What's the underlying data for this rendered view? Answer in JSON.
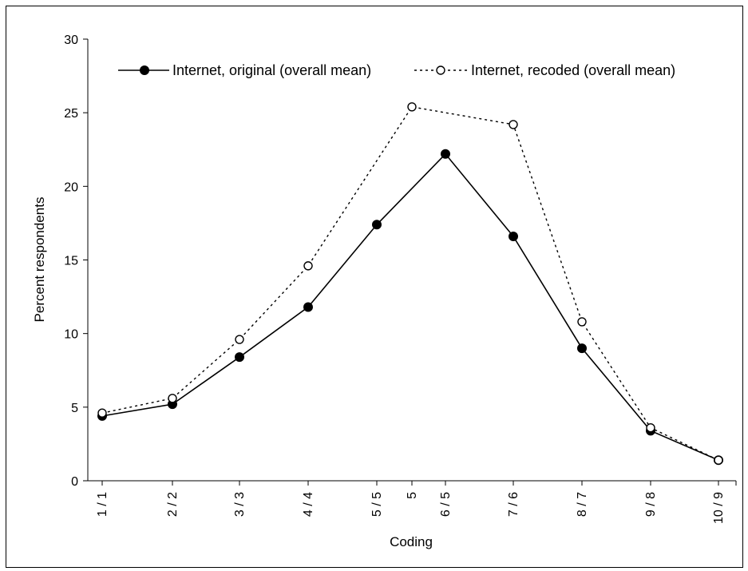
{
  "chart_data": {
    "type": "line",
    "xlabel": "Coding",
    "ylabel": "Percent respondents",
    "ylim": [
      0,
      30
    ],
    "yticks": [
      0,
      5,
      10,
      15,
      20,
      25,
      30
    ],
    "grid": false,
    "legend_position": "top",
    "x_ticks": [
      "1 / 1",
      "2 / 2",
      "3 / 3",
      "4 / 4",
      "5 / 5",
      "5",
      "6 / 5",
      "7 / 6",
      "8 / 7",
      "9 / 8",
      "10 / 9"
    ],
    "series": [
      {
        "name": "Internet, original (overall mean)",
        "style": "solid",
        "marker": "filled-circle",
        "color": "#000000",
        "points": [
          {
            "x": "1 / 1",
            "y": 4.4
          },
          {
            "x": "2 / 2",
            "y": 5.2
          },
          {
            "x": "3 / 3",
            "y": 8.4
          },
          {
            "x": "4 / 4",
            "y": 11.8
          },
          {
            "x": "5 / 5",
            "y": 17.4
          },
          {
            "x": "6 / 5",
            "y": 22.2
          },
          {
            "x": "7 / 6",
            "y": 16.6
          },
          {
            "x": "8 / 7",
            "y": 9.0
          },
          {
            "x": "9 / 8",
            "y": 3.4
          },
          {
            "x": "10 / 9",
            "y": 1.4
          }
        ]
      },
      {
        "name": "Internet, recoded (overall mean)",
        "style": "dotted",
        "marker": "open-circle",
        "color": "#000000",
        "points": [
          {
            "x": "1 / 1",
            "y": 4.6
          },
          {
            "x": "2 / 2",
            "y": 5.6
          },
          {
            "x": "3 / 3",
            "y": 9.6
          },
          {
            "x": "4 / 4",
            "y": 14.6
          },
          {
            "x": "5",
            "y": 25.4
          },
          {
            "x": "7 / 6",
            "y": 24.2
          },
          {
            "x": "8 / 7",
            "y": 10.8
          },
          {
            "x": "9 / 8",
            "y": 3.6
          },
          {
            "x": "10 / 9",
            "y": 1.4
          }
        ]
      }
    ]
  }
}
